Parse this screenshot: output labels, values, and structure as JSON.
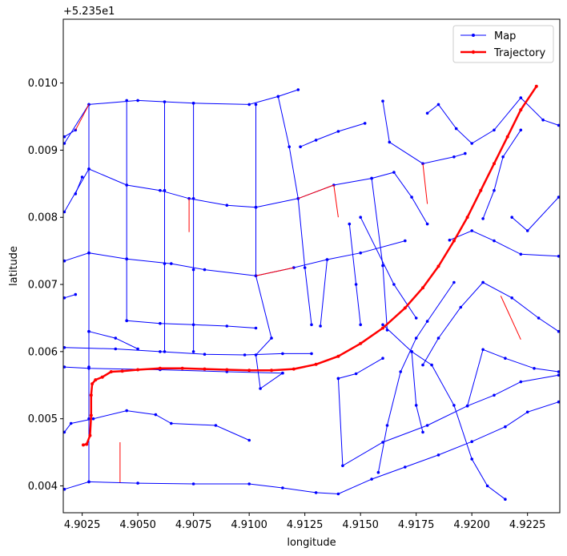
{
  "chart_data": {
    "type": "line",
    "xlabel": "longitude",
    "ylabel": "latitude",
    "y_offset_text": "+5.235e1",
    "xlim": [
      4.90165,
      4.92395
    ],
    "ylim": [
      0.0036,
      0.01095
    ],
    "x_ticks": [
      4.9025,
      4.905,
      4.9075,
      4.91,
      4.9125,
      4.915,
      4.9175,
      4.92,
      4.9225
    ],
    "x_tick_labels": [
      "4.9025",
      "4.9050",
      "4.9075",
      "4.9100",
      "4.9125",
      "4.9150",
      "4.9175",
      "4.9200",
      "4.9225"
    ],
    "y_ticks": [
      0.004,
      0.005,
      0.006,
      0.007,
      0.008,
      0.009,
      0.01
    ],
    "y_tick_labels": [
      "0.004",
      "0.005",
      "0.006",
      "0.007",
      "0.008",
      "0.009",
      "0.010"
    ],
    "grid": false,
    "legend_position": "top-right",
    "colors": {
      "map": "#0000ff",
      "trajectory": "#ff0000",
      "unmatched": "#ff0000"
    },
    "legend": [
      {
        "name": "Map",
        "color": "#0000ff",
        "style": "line-with-dot"
      },
      {
        "name": "Trajectory",
        "color": "#ff0000",
        "style": "thick-line-with-dot"
      }
    ],
    "map_segments": [
      [
        [
          4.9017,
          0.0091
        ],
        [
          4.9028,
          0.00968
        ],
        [
          4.905,
          0.00974
        ],
        [
          4.9075,
          0.0097
        ],
        [
          4.91,
          0.00968
        ],
        [
          4.9113,
          0.0098
        ],
        [
          4.9122,
          0.0099
        ]
      ],
      [
        [
          4.9017,
          0.00808
        ],
        [
          4.9028,
          0.00872
        ],
        [
          4.9045,
          0.00848
        ],
        [
          4.906,
          0.0084
        ],
        [
          4.9073,
          0.00828
        ],
        [
          4.909,
          0.00818
        ],
        [
          4.9103,
          0.00815
        ],
        [
          4.9122,
          0.00828
        ],
        [
          4.9138,
          0.00848
        ],
        [
          4.9155,
          0.00858
        ],
        [
          4.9165,
          0.00867
        ],
        [
          4.9173,
          0.0083
        ],
        [
          4.918,
          0.0079
        ]
      ],
      [
        [
          4.9017,
          0.00735
        ],
        [
          4.9028,
          0.00747
        ],
        [
          4.9045,
          0.00738
        ],
        [
          4.9065,
          0.00731
        ],
        [
          4.908,
          0.00722
        ],
        [
          4.9103,
          0.00713
        ],
        [
          4.912,
          0.00725
        ],
        [
          4.9135,
          0.00737
        ],
        [
          4.915,
          0.00747
        ],
        [
          4.917,
          0.00765
        ]
      ],
      [
        [
          4.9017,
          0.00606
        ],
        [
          4.904,
          0.00604
        ],
        [
          4.906,
          0.006
        ],
        [
          4.908,
          0.00596
        ],
        [
          4.9098,
          0.00595
        ],
        [
          4.9115,
          0.00597
        ],
        [
          4.9128,
          0.00597
        ]
      ],
      [
        [
          4.9017,
          0.00577
        ],
        [
          4.9028,
          0.00575
        ],
        [
          4.906,
          0.00573
        ],
        [
          4.909,
          0.0057
        ],
        [
          4.9115,
          0.00568
        ]
      ],
      [
        [
          4.9017,
          0.0048
        ],
        [
          4.902,
          0.00493
        ],
        [
          4.903,
          0.005
        ],
        [
          4.9045,
          0.00512
        ],
        [
          4.9058,
          0.00506
        ],
        [
          4.9065,
          0.00493
        ],
        [
          4.9085,
          0.0049
        ],
        [
          4.91,
          0.00468
        ]
      ],
      [
        [
          4.9017,
          0.00395
        ],
        [
          4.9028,
          0.00406
        ],
        [
          4.905,
          0.00404
        ],
        [
          4.9075,
          0.00403
        ],
        [
          4.91,
          0.00403
        ],
        [
          4.9115,
          0.00397
        ],
        [
          4.913,
          0.0039
        ],
        [
          4.914,
          0.00388
        ],
        [
          4.9155,
          0.0041
        ],
        [
          4.917,
          0.00428
        ],
        [
          4.9185,
          0.00446
        ],
        [
          4.92,
          0.00466
        ],
        [
          4.9215,
          0.00488
        ],
        [
          4.9225,
          0.0051
        ],
        [
          4.9239,
          0.00525
        ]
      ],
      [
        [
          4.918,
          0.00955
        ],
        [
          4.9185,
          0.00968
        ],
        [
          4.9193,
          0.00932
        ],
        [
          4.92,
          0.0091
        ],
        [
          4.921,
          0.0093
        ],
        [
          4.9222,
          0.00978
        ],
        [
          4.9232,
          0.00945
        ],
        [
          4.9239,
          0.00937
        ]
      ],
      [
        [
          4.916,
          0.00973
        ],
        [
          4.9163,
          0.00912
        ],
        [
          4.9178,
          0.0088
        ],
        [
          4.9192,
          0.0089
        ],
        [
          4.9197,
          0.00895
        ]
      ],
      [
        [
          4.9123,
          0.00905
        ],
        [
          4.913,
          0.00915
        ],
        [
          4.914,
          0.00928
        ],
        [
          4.9152,
          0.0094
        ]
      ],
      [
        [
          4.9028,
          0.00968
        ],
        [
          4.9028,
          0.00872
        ],
        [
          4.9028,
          0.00747
        ],
        [
          4.9028,
          0.0063
        ],
        [
          4.9028,
          0.00577
        ],
        [
          4.9028,
          0.005
        ],
        [
          4.9028,
          0.00406
        ]
      ],
      [
        [
          4.9045,
          0.00974
        ],
        [
          4.9045,
          0.00848
        ],
        [
          4.9045,
          0.00738
        ],
        [
          4.9045,
          0.00646
        ]
      ],
      [
        [
          4.9062,
          0.00972
        ],
        [
          4.9062,
          0.0084
        ],
        [
          4.9062,
          0.00731
        ],
        [
          4.9062,
          0.006
        ]
      ],
      [
        [
          4.9075,
          0.0097
        ],
        [
          4.9075,
          0.00828
        ],
        [
          4.9075,
          0.00722
        ],
        [
          4.9075,
          0.006
        ]
      ],
      [
        [
          4.9103,
          0.00968
        ],
        [
          4.9103,
          0.00815
        ],
        [
          4.9103,
          0.00713
        ],
        [
          4.911,
          0.0062
        ],
        [
          4.9103,
          0.00595
        ],
        [
          4.9105,
          0.00545
        ],
        [
          4.9115,
          0.00568
        ]
      ],
      [
        [
          4.9113,
          0.0098
        ],
        [
          4.9118,
          0.00905
        ],
        [
          4.9122,
          0.00828
        ],
        [
          4.9125,
          0.00725
        ],
        [
          4.9128,
          0.0064
        ]
      ],
      [
        [
          4.9135,
          0.00737
        ],
        [
          4.9132,
          0.00638
        ]
      ],
      [
        [
          4.9155,
          0.00858
        ],
        [
          4.916,
          0.00728
        ],
        [
          4.9162,
          0.00632
        ]
      ],
      [
        [
          4.9045,
          0.00646
        ],
        [
          4.906,
          0.00642
        ],
        [
          4.9075,
          0.0064
        ],
        [
          4.909,
          0.00638
        ],
        [
          4.9103,
          0.00635
        ]
      ],
      [
        [
          4.9028,
          0.0063
        ],
        [
          4.904,
          0.0062
        ],
        [
          4.905,
          0.00604
        ]
      ],
      [
        [
          4.9017,
          0.0068
        ],
        [
          4.9022,
          0.00685
        ]
      ],
      [
        [
          4.9017,
          0.0092
        ],
        [
          4.9022,
          0.0093
        ]
      ],
      [
        [
          4.9022,
          0.00835
        ],
        [
          4.9025,
          0.0086
        ]
      ],
      [
        [
          4.914,
          0.0056
        ],
        [
          4.9148,
          0.00567
        ],
        [
          4.916,
          0.0059
        ]
      ],
      [
        [
          4.914,
          0.0056
        ],
        [
          4.9142,
          0.0043
        ],
        [
          4.916,
          0.00465
        ],
        [
          4.918,
          0.0049
        ],
        [
          4.9198,
          0.00519
        ],
        [
          4.921,
          0.00535
        ],
        [
          4.9222,
          0.00555
        ],
        [
          4.9239,
          0.00565
        ]
      ],
      [
        [
          4.9198,
          0.00519
        ],
        [
          4.9205,
          0.00603
        ],
        [
          4.9215,
          0.0059
        ],
        [
          4.9228,
          0.00575
        ],
        [
          4.9239,
          0.0057
        ]
      ],
      [
        [
          4.916,
          0.0064
        ],
        [
          4.9173,
          0.006
        ],
        [
          4.9182,
          0.0058
        ],
        [
          4.9192,
          0.0052
        ],
        [
          4.92,
          0.0044
        ],
        [
          4.9207,
          0.004
        ],
        [
          4.9215,
          0.0038
        ]
      ],
      [
        [
          4.9173,
          0.006
        ],
        [
          4.9175,
          0.0052
        ],
        [
          4.9178,
          0.0048
        ]
      ],
      [
        [
          4.9192,
          0.00703
        ],
        [
          4.918,
          0.00645
        ],
        [
          4.9175,
          0.0062
        ],
        [
          4.9168,
          0.0057
        ],
        [
          4.9162,
          0.0049
        ],
        [
          4.9158,
          0.0042
        ]
      ],
      [
        [
          4.9205,
          0.00703
        ],
        [
          4.9195,
          0.00666
        ],
        [
          4.9185,
          0.0062
        ],
        [
          4.9178,
          0.0058
        ]
      ],
      [
        [
          4.9205,
          0.00703
        ],
        [
          4.9218,
          0.0068
        ],
        [
          4.923,
          0.0065
        ],
        [
          4.9239,
          0.0063
        ]
      ],
      [
        [
          4.919,
          0.00766
        ],
        [
          4.92,
          0.0078
        ],
        [
          4.921,
          0.00765
        ],
        [
          4.9222,
          0.00745
        ],
        [
          4.9239,
          0.00742
        ]
      ],
      [
        [
          4.9205,
          0.00798
        ],
        [
          4.921,
          0.0084
        ],
        [
          4.9214,
          0.0089
        ],
        [
          4.9222,
          0.0093
        ]
      ],
      [
        [
          4.9218,
          0.008
        ],
        [
          4.9225,
          0.0078
        ],
        [
          4.9239,
          0.0083
        ]
      ],
      [
        [
          4.915,
          0.008
        ],
        [
          4.9165,
          0.007
        ],
        [
          4.9175,
          0.0065
        ]
      ],
      [
        [
          4.9145,
          0.0079
        ],
        [
          4.9148,
          0.007
        ],
        [
          4.915,
          0.0064
        ]
      ]
    ],
    "map_red_links": [
      [
        [
          4.9022,
          0.0093
        ],
        [
          4.9028,
          0.00968
        ]
      ],
      [
        [
          4.9073,
          0.00828
        ],
        [
          4.9073,
          0.00778
        ]
      ],
      [
        [
          4.9103,
          0.00713
        ],
        [
          4.912,
          0.00725
        ]
      ],
      [
        [
          4.9122,
          0.00828
        ],
        [
          4.9138,
          0.00848
        ]
      ],
      [
        [
          4.9138,
          0.00848
        ],
        [
          4.914,
          0.008
        ]
      ],
      [
        [
          4.9178,
          0.0088
        ],
        [
          4.918,
          0.0082
        ]
      ],
      [
        [
          4.9042,
          0.00465
        ],
        [
          4.9042,
          0.00405
        ]
      ],
      [
        [
          4.9213,
          0.00683
        ],
        [
          4.9222,
          0.00618
        ]
      ]
    ],
    "trajectory": [
      [
        4.90255,
        0.00461
      ],
      [
        4.9027,
        0.00462
      ],
      [
        4.90285,
        0.00475
      ],
      [
        4.9029,
        0.00505
      ],
      [
        4.9029,
        0.00535
      ],
      [
        4.90295,
        0.00552
      ],
      [
        4.9031,
        0.00558
      ],
      [
        4.9034,
        0.00562
      ],
      [
        4.9038,
        0.0057
      ],
      [
        4.9043,
        0.00571
      ],
      [
        4.905,
        0.00573
      ],
      [
        4.906,
        0.00575
      ],
      [
        4.907,
        0.00575
      ],
      [
        4.908,
        0.00574
      ],
      [
        4.909,
        0.00573
      ],
      [
        4.91,
        0.00572
      ],
      [
        4.911,
        0.00572
      ],
      [
        4.912,
        0.00574
      ],
      [
        4.913,
        0.00581
      ],
      [
        4.914,
        0.00593
      ],
      [
        4.915,
        0.00612
      ],
      [
        4.916,
        0.00635
      ],
      [
        4.917,
        0.00665
      ],
      [
        4.9178,
        0.00695
      ],
      [
        4.9185,
        0.00727
      ],
      [
        4.9192,
        0.00765
      ],
      [
        4.9198,
        0.008
      ],
      [
        4.9204,
        0.0084
      ],
      [
        4.921,
        0.0088
      ],
      [
        4.9216,
        0.0092
      ],
      [
        4.9222,
        0.0096
      ],
      [
        4.9229,
        0.00995
      ]
    ]
  }
}
